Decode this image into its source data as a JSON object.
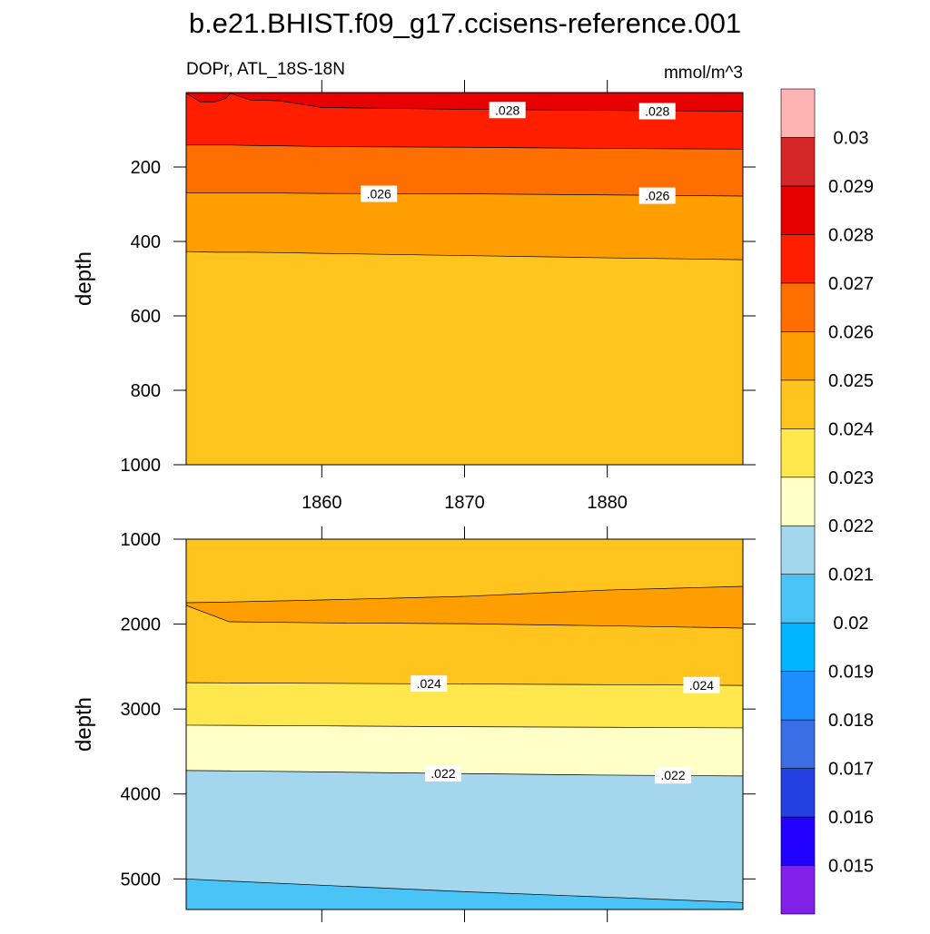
{
  "title": "b.e21.BHIST.f09_g17.ccisens-reference.001",
  "subtitle_left": "DOPr, ATL_18S-18N",
  "subtitle_right": "mmol/m^3",
  "chart_data": [
    {
      "type": "contour",
      "ylabel": "depth",
      "xlim": [
        1850.5,
        1889.5
      ],
      "ylim": [
        0,
        1000
      ],
      "xticks": [
        1860,
        1870,
        1880
      ],
      "show_xtick_labels": true,
      "yticks": [
        200,
        400,
        600,
        800,
        1000
      ],
      "x": [
        1850.5,
        1851.5,
        1852.5,
        1853.3,
        1853.6,
        1855,
        1857,
        1860,
        1870,
        1880,
        1889.5
      ],
      "contours": [
        {
          "level": 0.028,
          "depths": [
            2,
            25,
            25,
            15,
            2,
            20,
            22,
            40,
            45,
            48,
            50
          ]
        },
        {
          "level": 0.027,
          "depths": [
            141,
            141,
            141,
            141,
            141,
            142,
            143,
            145,
            147,
            150,
            152
          ]
        },
        {
          "level": 0.026,
          "depths": [
            270,
            270,
            270,
            270,
            270,
            270,
            270,
            271,
            272,
            275,
            278
          ]
        },
        {
          "level": 0.025,
          "depths": [
            427,
            428,
            429,
            429,
            429,
            429,
            430,
            432,
            438,
            444,
            449
          ]
        }
      ],
      "fill_colors": [
        "#e60000",
        "#ff1e00",
        "#ff6e00",
        "#ff9e00",
        "#ffc41e"
      ],
      "contour_labels": [
        {
          "level": 0.028,
          "label": ".028",
          "x": 1873,
          "y": 47
        },
        {
          "level": 0.028,
          "label": ".028",
          "x": 1883.5,
          "y": 50
        },
        {
          "level": 0.026,
          "label": ".026",
          "x": 1864,
          "y": 272
        },
        {
          "level": 0.026,
          "label": ".026",
          "x": 1883.5,
          "y": 277
        }
      ]
    },
    {
      "type": "contour",
      "ylabel": "depth",
      "xlim": [
        1850.5,
        1889.5
      ],
      "ylim": [
        1000,
        5360
      ],
      "xticks": [
        1860,
        1870,
        1880
      ],
      "show_xtick_labels": false,
      "yticks": [
        1000,
        2000,
        3000,
        4000,
        5000
      ],
      "x": [
        1850.5,
        1853.5,
        1860,
        1870,
        1880,
        1889.5
      ],
      "contours": [
        {
          "level": 0.025,
          "depths": [
            1748,
            1740,
            1716,
            1674,
            1599,
            1556
          ]
        },
        {
          "level": 0.025,
          "depths": [
            1780,
            1972,
            1985,
            1995,
            2020,
            2047
          ]
        },
        {
          "level": 0.024,
          "depths": [
            2690,
            2692,
            2697,
            2705,
            2713,
            2722
          ]
        },
        {
          "level": 0.023,
          "depths": [
            3190,
            3192,
            3198,
            3208,
            3215,
            3222
          ]
        },
        {
          "level": 0.022,
          "depths": [
            3724,
            3728,
            3740,
            3760,
            3778,
            3788
          ]
        },
        {
          "level": 0.021,
          "depths": [
            5000,
            5025,
            5075,
            5150,
            5215,
            5278
          ]
        }
      ],
      "fill_colors": [
        "#ffc41e",
        "#ff9e00",
        "#ffc41e",
        "#ffe84e",
        "#ffffc8",
        "#a4d6ee",
        "#4ac4f6"
      ],
      "contour_labels": [
        {
          "level": 0.024,
          "label": ".024",
          "x": 1867.5,
          "y": 2700
        },
        {
          "level": 0.024,
          "label": ".024",
          "x": 1886.6,
          "y": 2718
        },
        {
          "level": 0.022,
          "label": ".022",
          "x": 1868.5,
          "y": 3757
        },
        {
          "level": 0.022,
          "label": ".022",
          "x": 1884.6,
          "y": 3781
        }
      ]
    }
  ],
  "colorbar": {
    "levels": [
      0.015,
      0.016,
      0.017,
      0.018,
      0.019,
      0.02,
      0.021,
      0.022,
      0.023,
      0.024,
      0.025,
      0.026,
      0.027,
      0.028,
      0.029,
      0.03
    ],
    "colors": [
      "#8020e8",
      "#2000ff",
      "#2440e0",
      "#3a6ee6",
      "#1e8eff",
      "#00b4ff",
      "#4ac4f6",
      "#a4d6ee",
      "#ffffc8",
      "#ffe84e",
      "#ffc41e",
      "#ff9e00",
      "#ff6e00",
      "#ff1e00",
      "#e60000",
      "#d42626",
      "#ffb4b4"
    ]
  }
}
